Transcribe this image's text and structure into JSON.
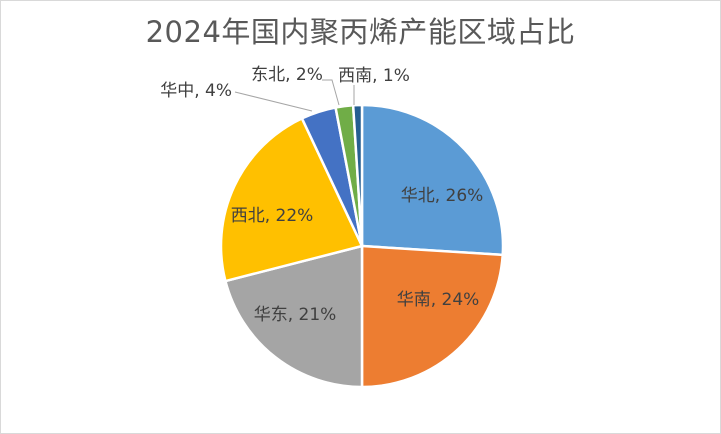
{
  "frame": {
    "background_color": "#FFFFFF",
    "border_color": "#D9D9D9"
  },
  "chart_data": {
    "type": "pie",
    "title": "2024年国内聚丙烯产能区域占比",
    "title_color": "#595959",
    "label_color": "#404040",
    "leader_line_color": "#A6A6A6",
    "slice_separator_color": "#FFFFFF",
    "start_angle_deg": 0,
    "direction": "clockwise",
    "total_pct": 100,
    "categories": [
      "华北",
      "华南",
      "华东",
      "西北",
      "华中",
      "东北",
      "西南"
    ],
    "values": [
      26,
      24,
      21,
      22,
      4,
      2,
      1
    ],
    "slices": [
      {
        "category": "华北",
        "value_pct": 26,
        "color": "#5B9BD5",
        "label": "华北, 26%",
        "label_placement": "inside"
      },
      {
        "category": "华南",
        "value_pct": 24,
        "color": "#ED7D31",
        "label": "华南, 24%",
        "label_placement": "inside"
      },
      {
        "category": "华东",
        "value_pct": 21,
        "color": "#A5A5A5",
        "label": "华东, 21%",
        "label_placement": "inside"
      },
      {
        "category": "西北",
        "value_pct": 22,
        "color": "#FFC000",
        "label": "西北, 22%",
        "label_placement": "inside"
      },
      {
        "category": "华中",
        "value_pct": 4,
        "color": "#4472C4",
        "label": "华中, 4%",
        "label_placement": "outside"
      },
      {
        "category": "东北",
        "value_pct": 2,
        "color": "#70AD47",
        "label": "东北, 2%",
        "label_placement": "outside"
      },
      {
        "category": "西南",
        "value_pct": 1,
        "color": "#255E91",
        "label": "西南, 1%",
        "label_placement": "outside"
      }
    ],
    "legend": "none",
    "grid": "off"
  }
}
